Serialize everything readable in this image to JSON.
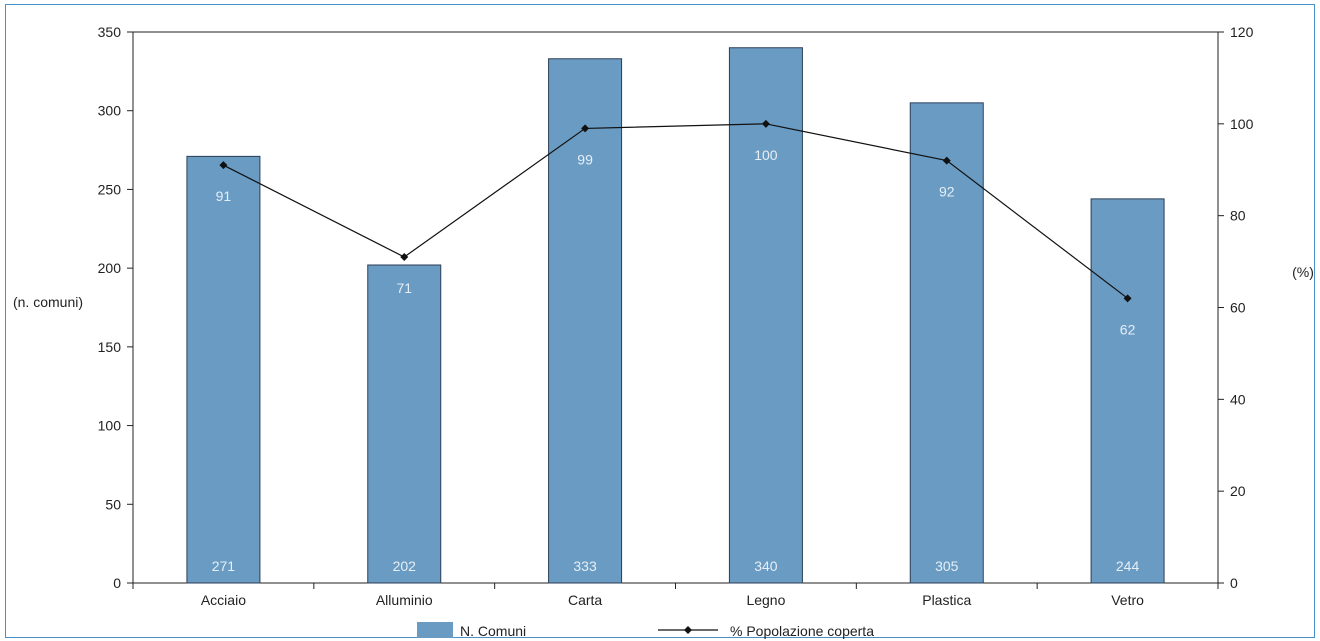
{
  "chart_data": {
    "type": "bar",
    "title": "",
    "categories": [
      "Acciaio",
      "Alluminio",
      "Carta",
      "Legno",
      "Plastica",
      "Vetro"
    ],
    "series": [
      {
        "name": "N. Comuni",
        "type": "bar",
        "axis": "left",
        "values": [
          271,
          202,
          333,
          340,
          305,
          244
        ]
      },
      {
        "name": "% Popolazione coperta",
        "type": "line",
        "axis": "right",
        "values": [
          91,
          71,
          99,
          100,
          92,
          62
        ]
      }
    ],
    "ylabel": "(n. comuni)",
    "ylabel_right": "(%)",
    "ylim": [
      0,
      350
    ],
    "ylim_right": [
      0,
      120
    ],
    "yticks": [
      0,
      50,
      100,
      150,
      200,
      250,
      300,
      350
    ],
    "yticks_right": [
      0,
      20,
      40,
      60,
      80,
      100,
      120
    ],
    "grid": false,
    "legend_position": "bottom",
    "colors": {
      "bar": "#6a9bc3",
      "bar_stroke": "#2b3e55",
      "line": "#111111",
      "bar_label": "#e6eef6"
    }
  }
}
